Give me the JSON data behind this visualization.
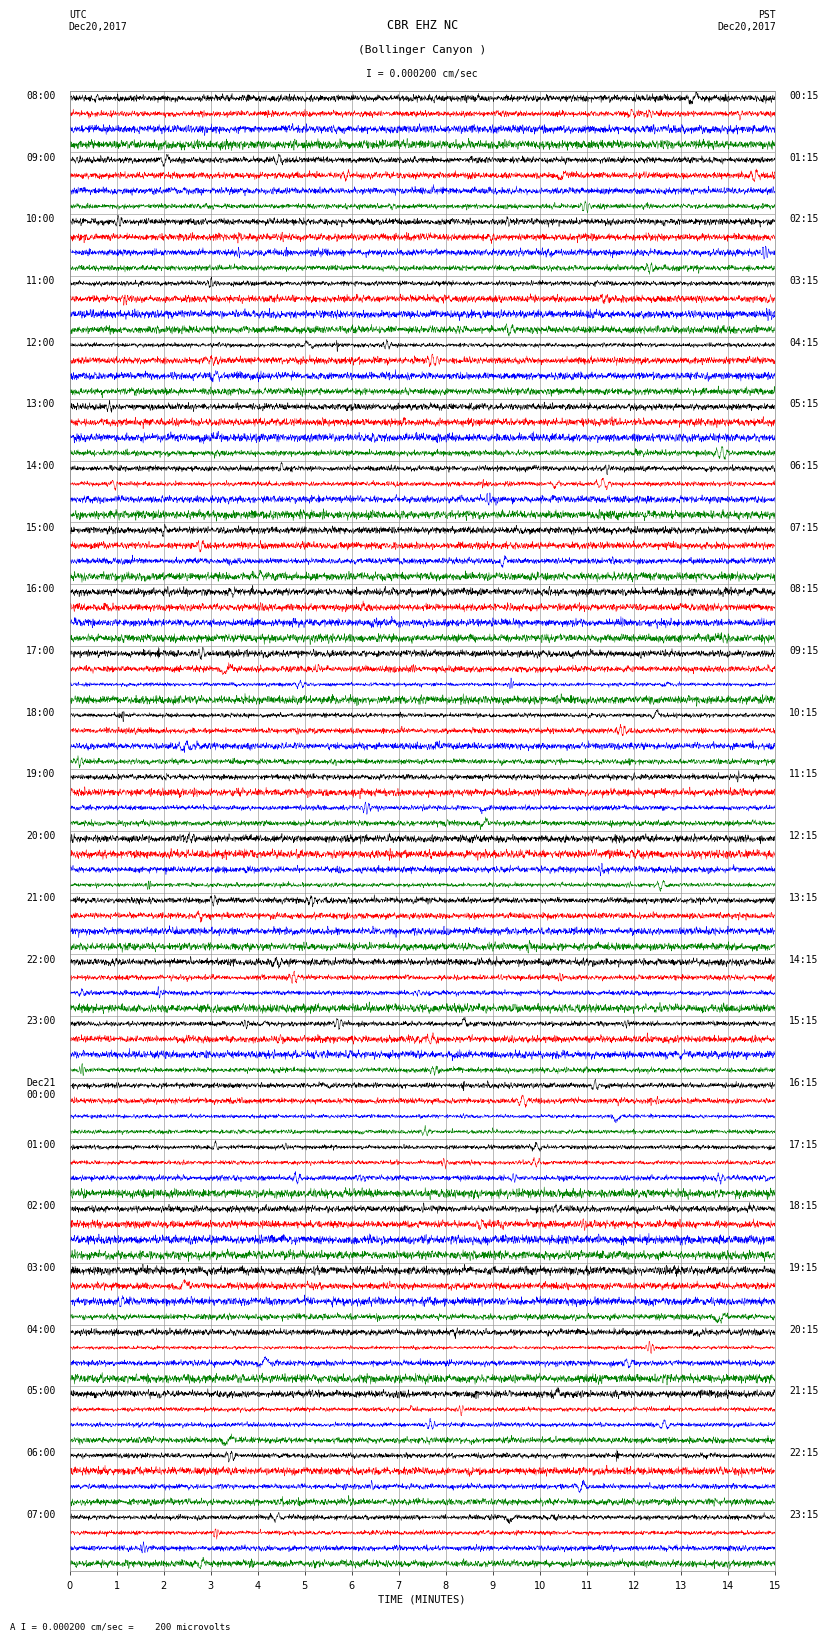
{
  "title_line1": "CBR EHZ NC",
  "title_line2": "(Bollinger Canyon )",
  "scale_label": "I = 0.000200 cm/sec",
  "utc_label": "UTC\nDec20,2017",
  "pst_label": "PST\nDec20,2017",
  "xlabel": "TIME (MINUTES)",
  "footer_label": "A I = 0.000200 cm/sec =    200 microvolts",
  "xlim": [
    0,
    15
  ],
  "colors": [
    "black",
    "red",
    "blue",
    "green"
  ],
  "bg_color": "white",
  "grid_color": "#888888",
  "left_label_times_utc": [
    "08:00",
    "09:00",
    "10:00",
    "11:00",
    "12:00",
    "13:00",
    "14:00",
    "15:00",
    "16:00",
    "17:00",
    "18:00",
    "19:00",
    "20:00",
    "21:00",
    "22:00",
    "23:00",
    "Dec21\n00:00",
    "01:00",
    "02:00",
    "03:00",
    "04:00",
    "05:00",
    "06:00",
    "07:00"
  ],
  "right_label_times_pst": [
    "00:15",
    "01:15",
    "02:15",
    "03:15",
    "04:15",
    "05:15",
    "06:15",
    "07:15",
    "08:15",
    "09:15",
    "10:15",
    "11:15",
    "12:15",
    "13:15",
    "14:15",
    "15:15",
    "16:15",
    "17:15",
    "18:15",
    "19:15",
    "20:15",
    "21:15",
    "22:15",
    "23:15"
  ],
  "noise_scales": [
    0.9,
    0.85,
    0.75,
    0.12,
    0.1,
    0.08,
    0.07,
    0.08,
    0.12,
    0.07,
    0.07,
    0.07,
    0.07,
    0.07,
    0.07,
    0.07,
    0.07,
    0.07,
    0.07,
    0.07,
    0.07,
    0.3,
    0.7,
    0.85
  ],
  "title_fontsize": 8.5,
  "label_fontsize": 7.0,
  "tick_fontsize": 7,
  "footer_fontsize": 6.5
}
